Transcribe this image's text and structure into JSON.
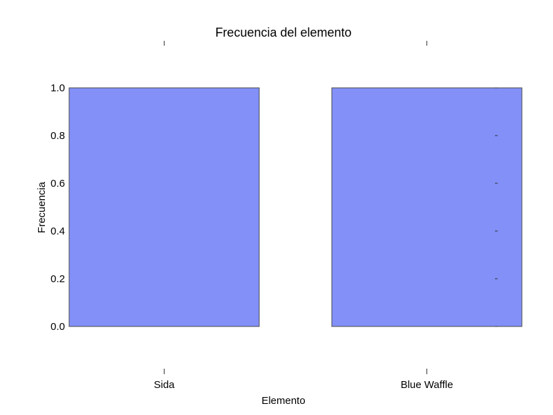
{
  "chart_data": {
    "type": "bar",
    "title": "Frecuencia del elemento",
    "xlabel": "Elemento",
    "ylabel": "Frecuencia",
    "categories": [
      "Sida",
      "Blue Waffle"
    ],
    "values": [
      1.0,
      1.0
    ],
    "ylim": [
      0,
      1.0
    ],
    "yticks": [
      "0.0",
      "0.2",
      "0.4",
      "0.6",
      "0.8",
      "1.0"
    ],
    "grid": false,
    "legend": "none",
    "bar_color": "#8290f8",
    "bar_edge_color": "#4a4a4a"
  }
}
